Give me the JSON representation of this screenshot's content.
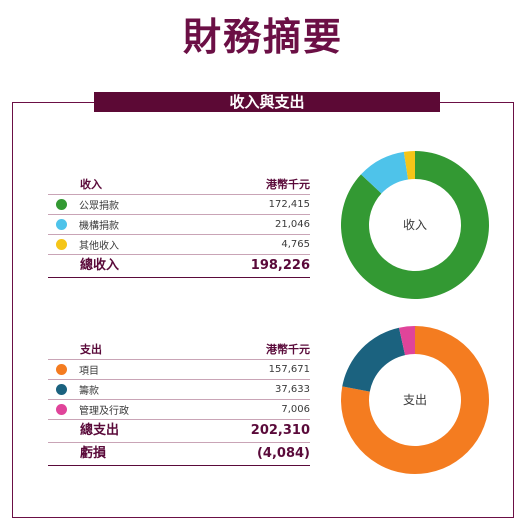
{
  "title": "財務摘要",
  "banner": "收入與支出",
  "unit": "港幣千元",
  "colors": {
    "green": "#339933",
    "sky": "#4ec3ea",
    "yellow": "#f5c518",
    "orange": "#f47c20",
    "teal": "#1b627f",
    "pink": "#e0449a"
  },
  "income": {
    "heading": "收入",
    "rows": [
      {
        "label": "公眾捐款",
        "value": "172,415",
        "color": "#339933"
      },
      {
        "label": "機構捐款",
        "value": "21,046",
        "color": "#4ec3ea"
      },
      {
        "label": "其他收入",
        "value": "4,765",
        "color": "#f5c518"
      }
    ],
    "total_label": "總收入",
    "total_value": "198,226"
  },
  "expense": {
    "heading": "支出",
    "rows": [
      {
        "label": "項目",
        "value": "157,671",
        "color": "#f47c20"
      },
      {
        "label": "籌款",
        "value": "37,633",
        "color": "#1b627f"
      },
      {
        "label": "管理及行政",
        "value": "7,006",
        "color": "#e0449a"
      }
    ],
    "total_label": "總支出",
    "total_value": "202,310",
    "deficit_label": "虧損",
    "deficit_value": "(4,084)"
  },
  "chart_data": [
    {
      "type": "pie",
      "title": "收入",
      "categories": [
        "公眾捐款",
        "機構捐款",
        "其他收入"
      ],
      "values": [
        172415,
        21046,
        4765
      ],
      "colors": [
        "#339933",
        "#4ec3ea",
        "#f5c518"
      ],
      "unit": "港幣千元"
    },
    {
      "type": "pie",
      "title": "支出",
      "categories": [
        "項目",
        "籌款",
        "管理及行政"
      ],
      "values": [
        157671,
        37633,
        7006
      ],
      "colors": [
        "#f47c20",
        "#1b627f",
        "#e0449a"
      ],
      "unit": "港幣千元"
    }
  ]
}
